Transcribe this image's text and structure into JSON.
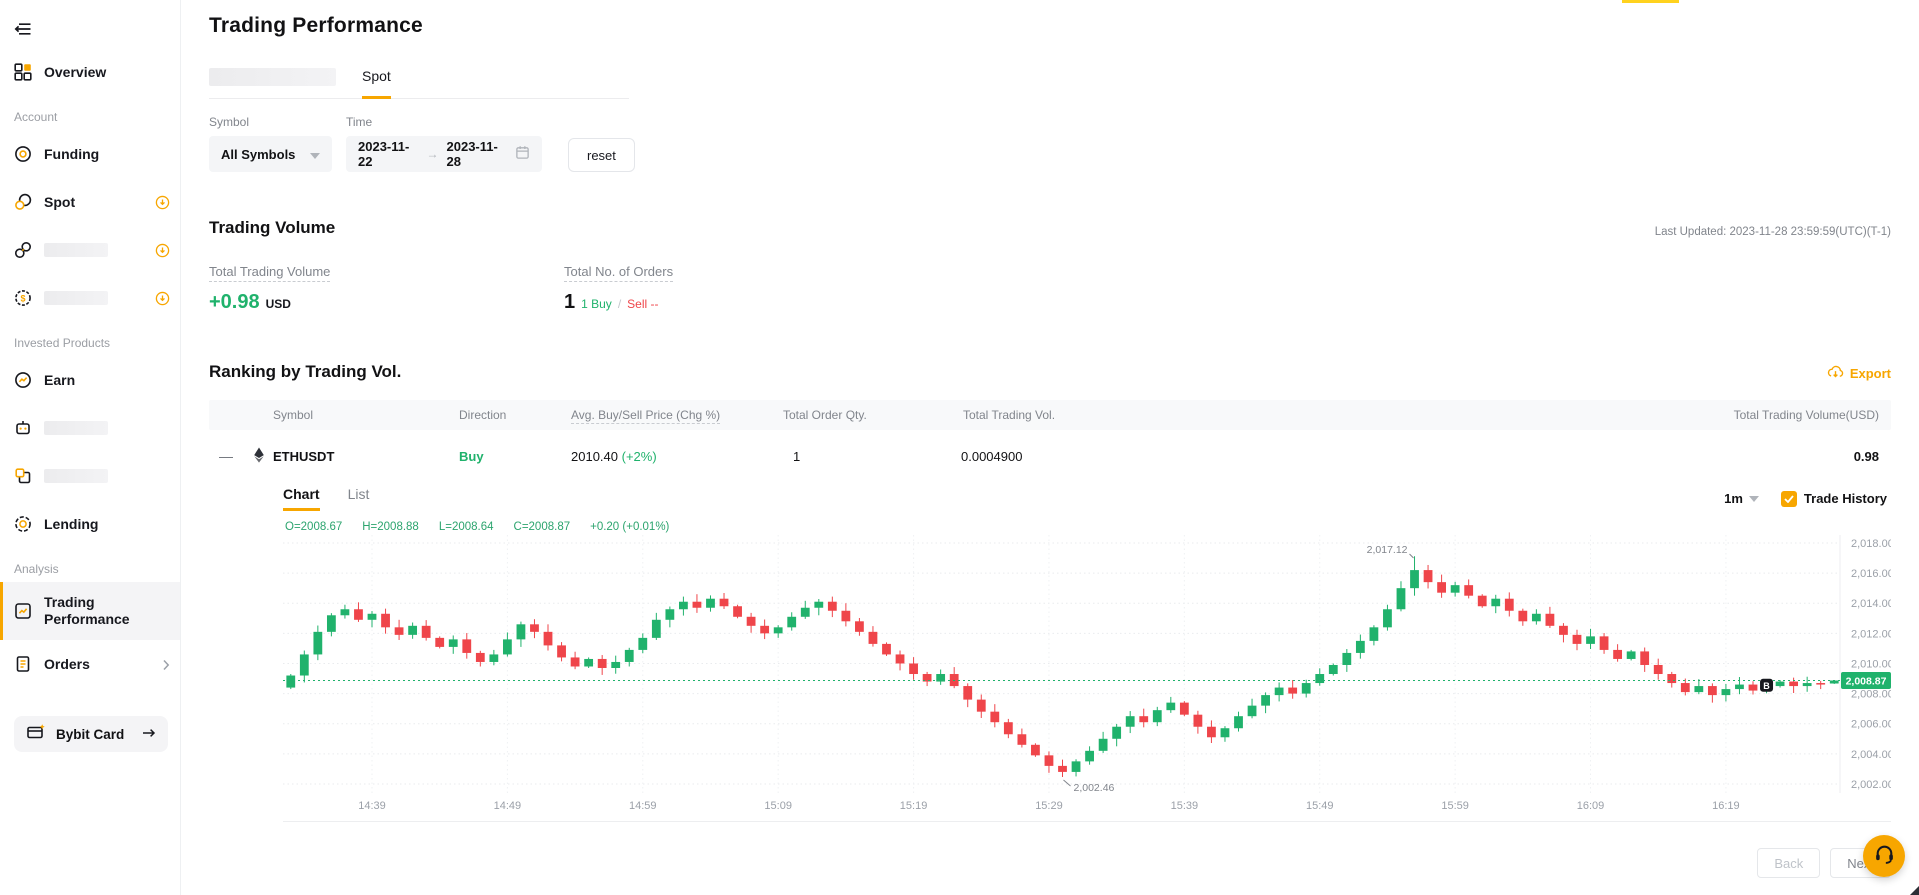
{
  "accent_strip": {
    "color": "#ffd21e"
  },
  "sidebar": {
    "sections": [
      {
        "label": "",
        "items": [
          {
            "key": "overview",
            "label": "Overview",
            "icon": "grid"
          }
        ]
      },
      {
        "label": "Account",
        "items": [
          {
            "key": "funding",
            "label": "Funding",
            "icon": "funding"
          },
          {
            "key": "spot",
            "label": "Spot",
            "icon": "spot",
            "badge": true
          },
          {
            "key": "redacted-account-1",
            "label": "",
            "icon": "link",
            "redacted": true,
            "badge": true
          },
          {
            "key": "redacted-account-2",
            "label": "",
            "icon": "coin",
            "redacted": true,
            "badge": true
          }
        ]
      },
      {
        "label": "Invested Products",
        "items": [
          {
            "key": "earn",
            "label": "Earn",
            "icon": "earn"
          },
          {
            "key": "redacted-invest-1",
            "label": "",
            "icon": "bot",
            "redacted": true
          },
          {
            "key": "redacted-invest-2",
            "label": "",
            "icon": "copy",
            "redacted": true
          },
          {
            "key": "lending",
            "label": "Lending",
            "icon": "lending"
          }
        ]
      },
      {
        "label": "Analysis",
        "items": [
          {
            "key": "trading-performance",
            "label": "Trading Performance",
            "icon": "performance",
            "active": true
          },
          {
            "key": "orders",
            "label": "Orders",
            "icon": "orders",
            "chevron": true
          }
        ]
      }
    ],
    "card_label": "Bybit Card"
  },
  "page": {
    "title": "Trading Performance"
  },
  "tabs": {
    "active_label": "Spot"
  },
  "filters": {
    "symbol_label": "Symbol",
    "symbol_value": "All Symbols",
    "time_label": "Time",
    "date_start": "2023-11-22",
    "date_end": "2023-11-28",
    "range_arrow": "→",
    "reset_label": "reset"
  },
  "volume_section": {
    "heading": "Trading Volume",
    "last_updated": "Last Updated: 2023-11-28 23:59:59(UTC)(T-1)",
    "total_volume_label": "Total Trading Volume",
    "total_volume_value": "+0.98",
    "total_volume_unit": "USD",
    "orders_label": "Total No. of Orders",
    "orders_value": "1",
    "orders_buy": "1 Buy",
    "orders_sep": "/",
    "orders_sell": "Sell --"
  },
  "ranking": {
    "heading": "Ranking by Trading Vol.",
    "export_label": "Export",
    "columns": [
      "Symbol",
      "Direction",
      "Avg. Buy/Sell Price (Chg %)",
      "Total Order Qty.",
      "Total Trading Vol.",
      "Total Trading Volume(USD)"
    ],
    "row": {
      "expand": "—",
      "symbol": "ETHUSDT",
      "direction": "Buy",
      "avg_price": "2010.40",
      "chg_pct": "(+2%)",
      "qty": "1",
      "vol": "0.0004900",
      "usd": "0.98"
    }
  },
  "chart_panel": {
    "tab_chart": "Chart",
    "tab_list": "List",
    "interval": "1m",
    "trade_history_label": "Trade History",
    "legend": {
      "o": "O=2008.67",
      "h": "H=2008.88",
      "l": "L=2008.64",
      "c": "C=2008.87",
      "chg": "+0.20 (+0.01%)"
    }
  },
  "chart_data": {
    "type": "candlestick",
    "symbol": "ETHUSDT",
    "interval": "1m",
    "start_time": "14:33",
    "up_color": "#20b26c",
    "down_color": "#ef454a",
    "grid": true,
    "y_ticks": [
      2018,
      2016,
      2014,
      2012,
      2010,
      2008,
      2006,
      2004,
      2002
    ],
    "y_range": [
      2001.4,
      2018.53
    ],
    "x_tick_labels": [
      "14:39",
      "14:49",
      "14:59",
      "15:09",
      "15:19",
      "15:29",
      "15:39",
      "15:49",
      "15:59",
      "16:09",
      "16:19"
    ],
    "x_tick_indices": [
      6,
      16,
      26,
      36,
      46,
      56,
      66,
      76,
      86,
      96,
      106
    ],
    "open_first": 2008.4,
    "closes": [
      2009.2,
      2010.6,
      2012.1,
      2013.2,
      2013.6,
      2012.9,
      2013.3,
      2012.4,
      2011.9,
      2012.5,
      2011.7,
      2011.1,
      2011.6,
      2010.7,
      2010.1,
      2010.6,
      2011.6,
      2012.6,
      2012.1,
      2011.2,
      2010.4,
      2009.8,
      2010.3,
      2009.7,
      2010.1,
      2010.9,
      2011.7,
      2012.9,
      2013.6,
      2014.1,
      2013.7,
      2014.3,
      2013.8,
      2013.1,
      2012.5,
      2012.0,
      2012.4,
      2013.1,
      2013.7,
      2014.1,
      2013.5,
      2012.8,
      2012.1,
      2011.3,
      2010.6,
      2010.0,
      2009.3,
      2008.8,
      2009.3,
      2008.5,
      2007.6,
      2006.8,
      2006.1,
      2005.3,
      2004.6,
      2003.9,
      2003.2,
      2002.8,
      2003.5,
      2004.2,
      2005.0,
      2005.8,
      2006.5,
      2006.1,
      2006.9,
      2007.4,
      2006.6,
      2005.8,
      2005.1,
      2005.7,
      2006.5,
      2007.2,
      2007.9,
      2008.4,
      2008.0,
      2008.7,
      2009.3,
      2009.9,
      2010.7,
      2011.5,
      2012.4,
      2013.6,
      2015.0,
      2016.2,
      2015.4,
      2014.7,
      2015.2,
      2014.5,
      2013.8,
      2014.3,
      2013.5,
      2012.8,
      2013.3,
      2012.5,
      2011.9,
      2011.3,
      2011.8,
      2010.9,
      2010.3,
      2010.8,
      2009.9,
      2009.3,
      2008.7,
      2008.1,
      2008.5,
      2007.9,
      2008.3,
      2008.6,
      2008.2,
      2008.5,
      2008.8,
      2008.5,
      2008.7,
      2008.6,
      2008.87
    ],
    "overrides": {
      "57": {
        "low": 2002.46
      },
      "83": {
        "high": 2017.12
      },
      "114": {
        "open": 2008.67,
        "high": 2008.88,
        "low": 2008.64,
        "close": 2008.87
      }
    },
    "annotations": {
      "high": {
        "index": 83,
        "text": "2,017.12"
      },
      "low": {
        "index": 57,
        "text": "2,002.46"
      },
      "last_price": {
        "value": 2008.87,
        "text": "2,008.87"
      },
      "buy_marker": {
        "index": 109,
        "price": 2008.55,
        "label": "B"
      }
    }
  },
  "footer": {
    "back_label": "Back",
    "next_label": "Next"
  }
}
